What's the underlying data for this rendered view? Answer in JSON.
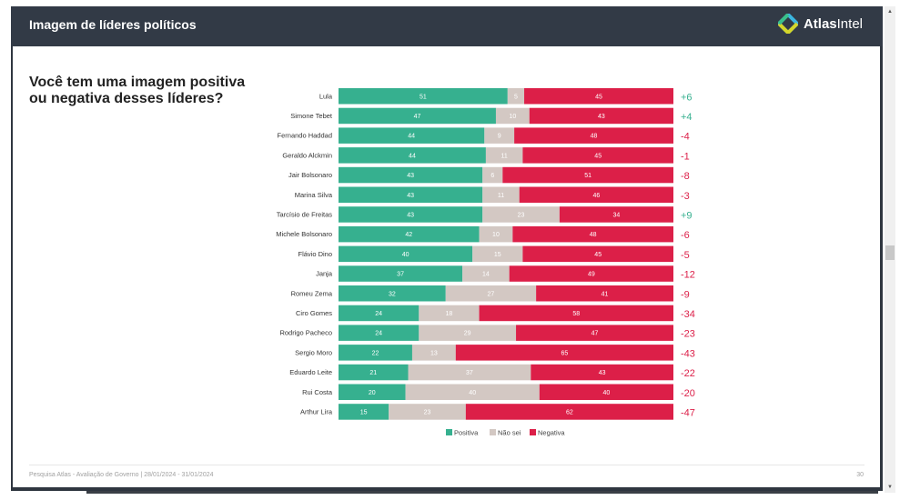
{
  "header": {
    "title": "Imagem de líderes políticos",
    "logo_text_bold": "Atlas",
    "logo_text_regular": "Intel",
    "logo_icon": "atlasintel-logo-icon"
  },
  "question": "Você tem uma imagem positiva ou negativa desses líderes?",
  "footer": {
    "source": "Pesquisa Atlas - Avaliação de Governo | 28/01/2024 - 31/01/2024",
    "page": "30"
  },
  "colors": {
    "positiva": "#36b08f",
    "nao_sei": "#d3c8c3",
    "negativa": "#dc1f48",
    "net_positive": "#36b08f",
    "net_negative": "#dc1f48"
  },
  "chart_data": {
    "type": "bar",
    "orientation": "horizontal-stacked-100",
    "title": "Você tem uma imagem positiva ou negativa desses líderes?",
    "xlabel": "",
    "ylabel": "",
    "xlim": [
      0,
      100
    ],
    "grid": false,
    "legend_position": "bottom",
    "categories": [
      "Lula",
      "Simone Tebet",
      "Fernando Haddad",
      "Geraldo Alckmin",
      "Jair Bolsonaro",
      "Marina Silva",
      "Tarcísio de Freitas",
      "Michele Bolsonaro",
      "Flávio Dino",
      "Janja",
      "Romeu Zema",
      "Ciro Gomes",
      "Rodrigo Pacheco",
      "Sergio Moro",
      "Eduardo Leite",
      "Rui Costa",
      "Arthur Lira"
    ],
    "series": [
      {
        "name": "Positiva",
        "values": [
          51,
          47,
          44,
          44,
          43,
          43,
          43,
          42,
          40,
          37,
          32,
          24,
          24,
          22,
          21,
          20,
          15
        ]
      },
      {
        "name": "Não sei",
        "values": [
          5,
          10,
          9,
          11,
          6,
          11,
          23,
          10,
          15,
          14,
          27,
          18,
          29,
          13,
          37,
          40,
          23
        ]
      },
      {
        "name": "Negativa",
        "values": [
          45,
          43,
          48,
          45,
          51,
          46,
          34,
          48,
          45,
          49,
          41,
          58,
          47,
          65,
          43,
          40,
          62
        ]
      }
    ],
    "net_labels": [
      "+6",
      "+4",
      "-4",
      "-1",
      "-8",
      "-3",
      "+9",
      "-6",
      "-5",
      "-12",
      "-9",
      "-34",
      "-23",
      "-43",
      "-22",
      "-20",
      "-47"
    ]
  },
  "scrollbar": {
    "up_label": "▲",
    "down_label": "▼"
  }
}
